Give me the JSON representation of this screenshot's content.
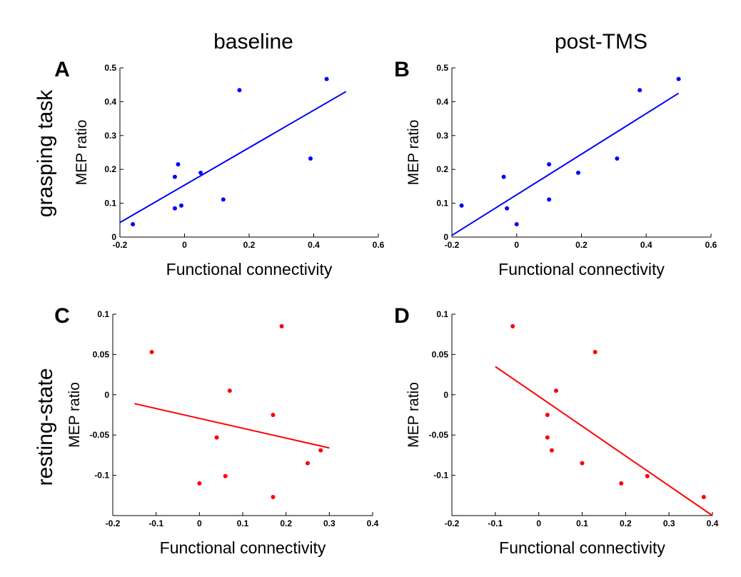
{
  "column_titles": [
    "baseline",
    "post-TMS"
  ],
  "row_labels": [
    "grasping task",
    "resting-state"
  ],
  "chart_data": [
    {
      "panel": "A",
      "type": "scatter",
      "xlabel": "Functional connectivity",
      "ylabel": "MEP ratio",
      "xlim": [
        -0.2,
        0.6
      ],
      "ylim": [
        0,
        0.5
      ],
      "xticks": [
        "-0.2",
        "0",
        "0.2",
        "0.4",
        "0.6"
      ],
      "yticks": [
        "0",
        "0.1",
        "0.2",
        "0.3",
        "0.4",
        "0.5"
      ],
      "color": "#0000ff",
      "points": [
        {
          "x": -0.16,
          "y": 0.038
        },
        {
          "x": -0.03,
          "y": 0.178
        },
        {
          "x": -0.02,
          "y": 0.215
        },
        {
          "x": -0.03,
          "y": 0.085
        },
        {
          "x": -0.01,
          "y": 0.093
        },
        {
          "x": 0.05,
          "y": 0.19
        },
        {
          "x": 0.12,
          "y": 0.111
        },
        {
          "x": 0.17,
          "y": 0.434
        },
        {
          "x": 0.39,
          "y": 0.232
        },
        {
          "x": 0.44,
          "y": 0.467
        }
      ],
      "fit": {
        "x": [
          -0.2,
          0.5
        ],
        "y": [
          0.043,
          0.43
        ]
      }
    },
    {
      "panel": "B",
      "type": "scatter",
      "xlabel": "Functional connectivity",
      "ylabel": "MEP ratio",
      "xlim": [
        -0.2,
        0.6
      ],
      "ylim": [
        0,
        0.5
      ],
      "xticks": [
        "-0.2",
        "0",
        "0.2",
        "0.4",
        "0.6"
      ],
      "yticks": [
        "0",
        "0.1",
        "0.2",
        "0.3",
        "0.4",
        "0.5"
      ],
      "color": "#0000ff",
      "points": [
        {
          "x": -0.17,
          "y": 0.093
        },
        {
          "x": -0.04,
          "y": 0.178
        },
        {
          "x": -0.03,
          "y": 0.085
        },
        {
          "x": 0.0,
          "y": 0.038
        },
        {
          "x": 0.1,
          "y": 0.215
        },
        {
          "x": 0.1,
          "y": 0.111
        },
        {
          "x": 0.19,
          "y": 0.19
        },
        {
          "x": 0.31,
          "y": 0.232
        },
        {
          "x": 0.38,
          "y": 0.434
        },
        {
          "x": 0.5,
          "y": 0.467
        }
      ],
      "fit": {
        "x": [
          -0.2,
          0.5
        ],
        "y": [
          0.005,
          0.425
        ]
      }
    },
    {
      "panel": "C",
      "type": "scatter",
      "xlabel": "Functional connectivity",
      "ylabel": "MEP ratio",
      "xlim": [
        -0.2,
        0.4
      ],
      "ylim": [
        -0.15,
        0.1
      ],
      "xticks": [
        "-0.2",
        "-0.1",
        "0",
        "0.1",
        "0.2",
        "0.3",
        "0.4"
      ],
      "yticks": [
        "-0.1",
        "-0.05",
        "0",
        "0.05",
        "0.1"
      ],
      "ytick_values": [
        -0.1,
        -0.05,
        0,
        0.05,
        0.1
      ],
      "color": "#ff0000",
      "points": [
        {
          "x": -0.11,
          "y": 0.053
        },
        {
          "x": 0.19,
          "y": 0.085
        },
        {
          "x": 0.07,
          "y": 0.005
        },
        {
          "x": 0.17,
          "y": -0.025
        },
        {
          "x": 0.04,
          "y": -0.053
        },
        {
          "x": 0.28,
          "y": -0.069
        },
        {
          "x": 0.25,
          "y": -0.085
        },
        {
          "x": 0.06,
          "y": -0.101
        },
        {
          "x": 0.0,
          "y": -0.11
        },
        {
          "x": 0.17,
          "y": -0.127
        }
      ],
      "fit": {
        "x": [
          -0.15,
          0.3
        ],
        "y": [
          -0.011,
          -0.066
        ]
      }
    },
    {
      "panel": "D",
      "type": "scatter",
      "xlabel": "Functional connectivity",
      "ylabel": "MEP ratio",
      "xlim": [
        -0.2,
        0.4
      ],
      "ylim": [
        -0.15,
        0.1
      ],
      "xticks": [
        "-0.2",
        "-0.1",
        "0",
        "0.1",
        "0.2",
        "0.3",
        "0.4"
      ],
      "yticks": [
        "-0.1",
        "-0.05",
        "0",
        "0.05",
        "0.1"
      ],
      "ytick_values": [
        -0.1,
        -0.05,
        0,
        0.05,
        0.1
      ],
      "color": "#ff0000",
      "points": [
        {
          "x": -0.06,
          "y": 0.085
        },
        {
          "x": 0.13,
          "y": 0.053
        },
        {
          "x": 0.04,
          "y": 0.005
        },
        {
          "x": 0.02,
          "y": -0.025
        },
        {
          "x": 0.02,
          "y": -0.053
        },
        {
          "x": 0.03,
          "y": -0.069
        },
        {
          "x": 0.1,
          "y": -0.085
        },
        {
          "x": 0.19,
          "y": -0.11
        },
        {
          "x": 0.25,
          "y": -0.101
        },
        {
          "x": 0.38,
          "y": -0.127
        }
      ],
      "fit": {
        "x": [
          -0.1,
          0.4
        ],
        "y": [
          0.035,
          -0.15
        ]
      }
    }
  ]
}
